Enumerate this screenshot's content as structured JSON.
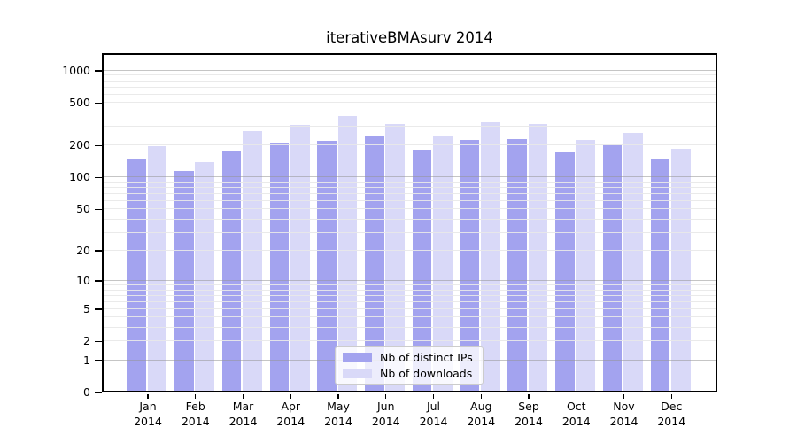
{
  "title": "iterativeBMAsurv 2014",
  "chart_data": {
    "type": "bar",
    "title": "iterativeBMAsurv 2014",
    "categories": [
      "Jan 2014",
      "Feb 2014",
      "Mar 2014",
      "Apr 2014",
      "May 2014",
      "Jun 2014",
      "Jul 2014",
      "Aug 2014",
      "Sep 2014",
      "Oct 2014",
      "Nov 2014",
      "Dec 2014"
    ],
    "months": [
      "Jan",
      "Feb",
      "Mar",
      "Apr",
      "May",
      "Jun",
      "Jul",
      "Aug",
      "Sep",
      "Oct",
      "Nov",
      "Dec"
    ],
    "year_label": "2014",
    "series": [
      {
        "name": "Nb of distinct IPs",
        "color": "#a3a3ef",
        "values": [
          148,
          116,
          178,
          212,
          221,
          243,
          182,
          224,
          229,
          175,
          201,
          150
        ]
      },
      {
        "name": "Nb of downloads",
        "color": "#d9d9f8",
        "values": [
          197,
          141,
          275,
          312,
          378,
          317,
          247,
          332,
          316,
          226,
          261,
          187
        ]
      }
    ],
    "xlabel": "",
    "ylabel": "",
    "y_scale": "log10(1+x)",
    "y_ticks": [
      0,
      1,
      2,
      5,
      10,
      20,
      50,
      100,
      200,
      500,
      1000
    ],
    "ylim": [
      0,
      1450
    ],
    "grid": {
      "horizontal": true,
      "minor_steps_per_decade": [
        1,
        2,
        3,
        4,
        5,
        6,
        7,
        8,
        9
      ],
      "decade_values": [
        1,
        10,
        100,
        1000
      ],
      "minor_color": "#ececec",
      "decade_color": "#c4c4c4"
    },
    "legend_position": "inside-bottom-center"
  },
  "colors": {
    "background": "#ffffff",
    "axis": "#000000",
    "bar_distinct_ips": "#a3a3ef",
    "bar_downloads": "#d9d9f8"
  }
}
